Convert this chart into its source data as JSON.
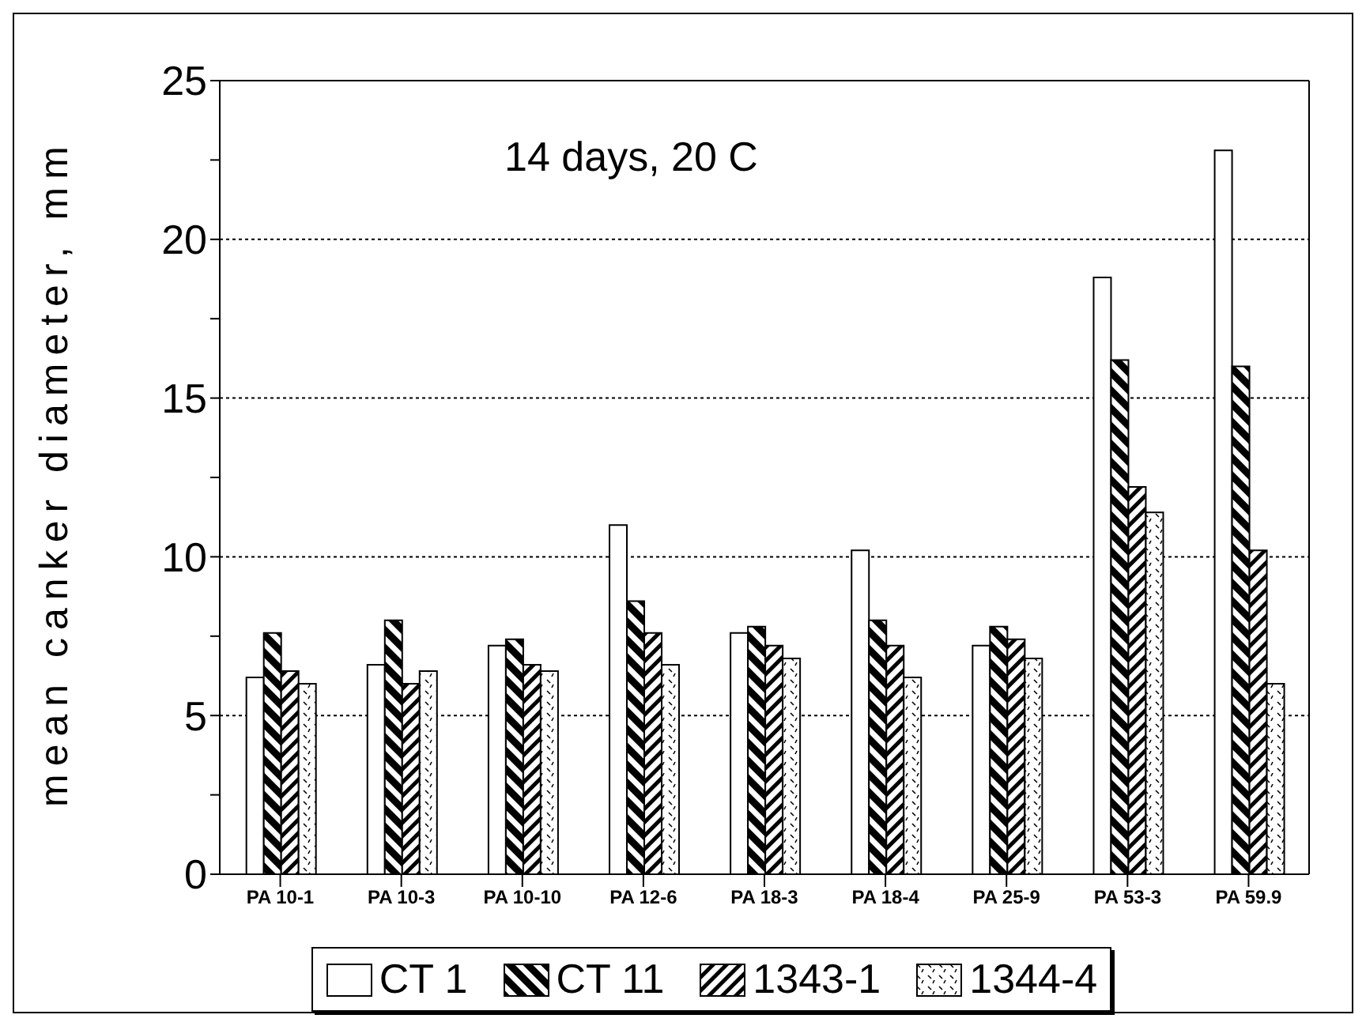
{
  "chart_data": {
    "type": "bar",
    "categories": [
      "PA 10-1",
      "PA 10-3",
      "PA 10-10",
      "PA 12-6",
      "PA 18-3",
      "PA 18-4",
      "PA 25-9",
      "PA 53-3",
      "PA 59.9"
    ],
    "series": [
      {
        "name": "CT 1",
        "color": "#ffffff",
        "values": [
          6.2,
          6.6,
          7.2,
          11.0,
          7.6,
          10.2,
          7.2,
          18.8,
          22.8
        ]
      },
      {
        "name": "CT 11",
        "color": "#000000",
        "values": [
          7.6,
          8.0,
          7.4,
          8.6,
          7.8,
          8.0,
          7.8,
          16.2,
          16.0
        ]
      },
      {
        "name": "1343-1",
        "color": "#000000",
        "values": [
          6.4,
          6.0,
          6.6,
          7.6,
          7.2,
          7.2,
          7.4,
          12.2,
          10.2
        ]
      },
      {
        "name": "1344-4",
        "color": "#000000",
        "values": [
          6.0,
          6.4,
          6.4,
          6.6,
          6.8,
          6.2,
          6.8,
          11.4,
          6.0
        ]
      }
    ],
    "ylabel": "mean canker diameter, mm",
    "annotations": [
      "14 days, 20 C"
    ],
    "ylim": [
      0,
      25
    ],
    "yticks": [
      0,
      {
        "value": 2.5,
        "label": null
      },
      5,
      {
        "value": 7.5,
        "label": null
      },
      10,
      {
        "value": 12.5,
        "label": null
      },
      15,
      {
        "value": 17.5,
        "label": null
      },
      20,
      {
        "value": 22.5,
        "label": null
      },
      25
    ],
    "grid": "y",
    "legend": "bottom"
  }
}
